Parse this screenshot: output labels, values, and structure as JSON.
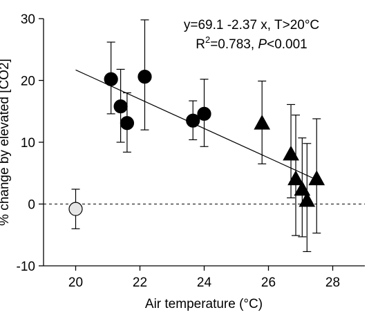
{
  "chart_data": {
    "type": "scatter",
    "title": "",
    "xlabel": "Air temperature (°C)",
    "ylabel": "% change by elevated [CO2]",
    "xlim": [
      19,
      29
    ],
    "ylim": [
      -10,
      30
    ],
    "xticks": [
      20,
      22,
      24,
      26,
      28
    ],
    "yticks": [
      -10,
      0,
      10,
      20,
      30
    ],
    "grid": false,
    "reference_line": {
      "y": 0,
      "style": "dashed"
    },
    "regression": {
      "intercept": 69.1,
      "slope": -2.37,
      "x_range": [
        20,
        27.7
      ],
      "equation_label": "y=69.1 -2.37 x, T>20°C",
      "stats_label": {
        "r_part": "R",
        "sup": "2",
        "r_value": "=0.783, ",
        "p_italic": "P",
        "p_value": "<0.001"
      }
    },
    "series": [
      {
        "marker": "open-circle",
        "color": "#e6e6e6",
        "points": [
          {
            "x": 20.0,
            "y": -0.8,
            "err_low": 3.2,
            "err_high": 3.2
          }
        ]
      },
      {
        "marker": "circle",
        "color": "#000000",
        "points": [
          {
            "x": 21.1,
            "y": 20.2,
            "err_low": 5.6,
            "err_high": 6.0
          },
          {
            "x": 21.4,
            "y": 15.8,
            "err_low": 5.8,
            "err_high": 6.0
          },
          {
            "x": 21.6,
            "y": 13.1,
            "err_low": 4.7,
            "err_high": 4.9
          },
          {
            "x": 22.15,
            "y": 20.6,
            "err_low": 8.6,
            "err_high": 9.2
          },
          {
            "x": 23.65,
            "y": 13.5,
            "err_low": 3.1,
            "err_high": 3.2
          },
          {
            "x": 24.0,
            "y": 14.6,
            "err_low": 5.3,
            "err_high": 5.6
          }
        ]
      },
      {
        "marker": "triangle",
        "color": "#000000",
        "points": [
          {
            "x": 25.8,
            "y": 13.0,
            "err_low": 6.5,
            "err_high": 6.9
          },
          {
            "x": 26.7,
            "y": 8.0,
            "err_low": 7.0,
            "err_high": 8.1
          },
          {
            "x": 26.85,
            "y": 4.0,
            "err_low": 9.1,
            "err_high": 10.4
          },
          {
            "x": 27.05,
            "y": 2.3,
            "err_low": 7.6,
            "err_high": 8.4
          },
          {
            "x": 27.2,
            "y": 0.5,
            "err_low": 8.2,
            "err_high": 9.3
          },
          {
            "x": 27.5,
            "y": 4.0,
            "err_low": 8.7,
            "err_high": 9.8
          }
        ]
      }
    ]
  }
}
